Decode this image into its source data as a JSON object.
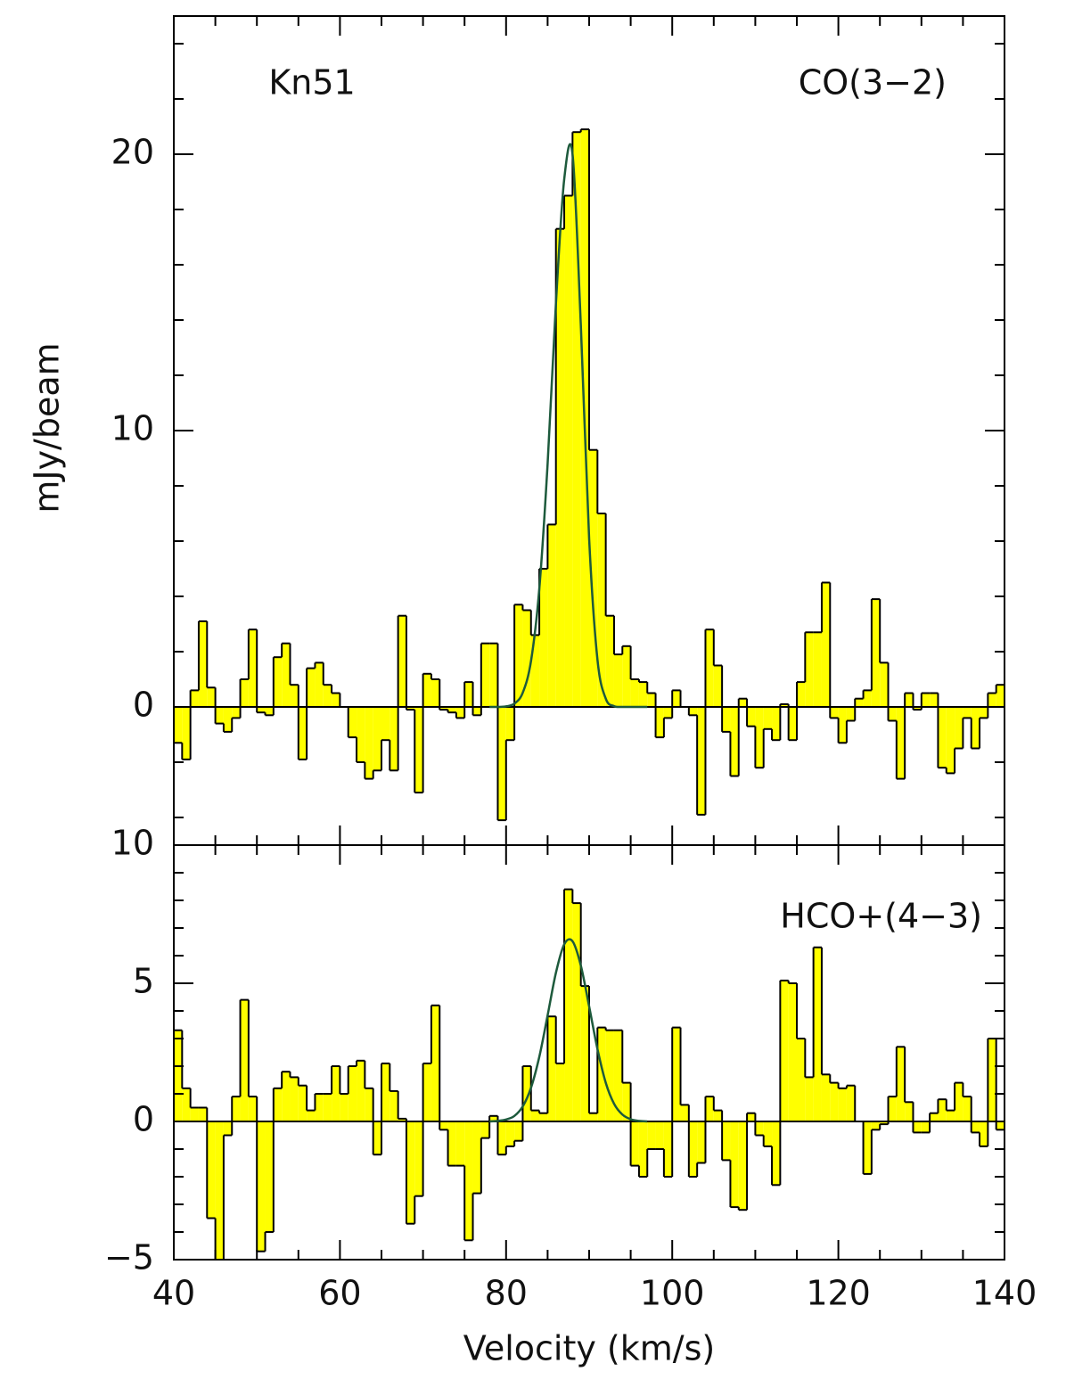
{
  "chart_data": [
    {
      "type": "histogram",
      "ylabel": "mJy/beam",
      "annotations": [
        "Kn51",
        "CO(3−2)"
      ],
      "bins": [
        40,
        41,
        42,
        43,
        44,
        45,
        46,
        47,
        48,
        49,
        50,
        51,
        52,
        53,
        54,
        55,
        56,
        57,
        58,
        59,
        60,
        61,
        62,
        63,
        64,
        65,
        66,
        67,
        68,
        69,
        70,
        71,
        72,
        73,
        74,
        75,
        76,
        77,
        78,
        79,
        80,
        81,
        82,
        83,
        84,
        85,
        86,
        87,
        88,
        89,
        90,
        91,
        92,
        93,
        94,
        95,
        96,
        97,
        98,
        99,
        100,
        101,
        102,
        103,
        104,
        105,
        106,
        107,
        108,
        109,
        110,
        111,
        112,
        113,
        114,
        115,
        116,
        117,
        118,
        119,
        120,
        121,
        122,
        123,
        124,
        125,
        126,
        127,
        128,
        129,
        130,
        131,
        132,
        133,
        134,
        135,
        136,
        137,
        138,
        139,
        140
      ],
      "values": [
        -1.3,
        -1.9,
        0.6,
        3.1,
        0.7,
        -0.6,
        -0.9,
        -0.4,
        1.0,
        2.8,
        -0.2,
        -0.3,
        1.8,
        2.3,
        0.8,
        -1.9,
        1.4,
        1.6,
        0.8,
        0.5,
        0,
        -1.1,
        -2.0,
        -2.6,
        -2.3,
        -1.2,
        -2.3,
        3.3,
        -0.1,
        -3.1,
        1.2,
        1.0,
        -0.1,
        -0.2,
        -0.4,
        0.9,
        -0.3,
        2.3,
        2.3,
        -4.1,
        -1.2,
        3.7,
        3.5,
        2.6,
        5.0,
        6.6,
        17.3,
        18.5,
        20.8,
        20.9,
        9.3,
        7.0,
        3.3,
        1.9,
        2.2,
        1.0,
        0.9,
        0.5,
        -1.1,
        -0.4,
        0.6,
        0,
        -0.3,
        -3.9,
        2.8,
        1.5,
        -0.9,
        -2.5,
        0.3,
        -0.7,
        -2.2,
        -0.8,
        -1.2,
        0.1,
        -1.2,
        0.9,
        2.7,
        2.7,
        4.5,
        -0.4,
        -1.3,
        -0.5,
        0.3,
        0.6,
        3.9,
        1.6,
        -0.5,
        -2.6,
        0.5,
        -0.1,
        0.5,
        0.5,
        -2.2,
        -2.4,
        -1.5,
        -0.4,
        -1.5,
        -0.4,
        0.5,
        0.8
      ],
      "color": "#ffff00",
      "fit": {
        "color": "#1d5a3c",
        "x": [
          78,
          79,
          80,
          81,
          82,
          83,
          84,
          85,
          86,
          87,
          88,
          89,
          90,
          91,
          92,
          93,
          94,
          95,
          96,
          97
        ],
        "values": [
          0,
          0,
          0.02,
          0.12,
          0.51,
          1.66,
          4.28,
          8.8,
          14.6,
          19.1,
          20.0,
          13.8,
          6.08,
          1.71,
          0.3,
          0.03,
          0,
          0,
          0,
          0
        ]
      },
      "xlim": [
        40,
        140
      ],
      "xminorticks": [
        45,
        50,
        55,
        65,
        70,
        75,
        85,
        90,
        95,
        105,
        110,
        115,
        125,
        130,
        135
      ],
      "ylim": [
        -5,
        25
      ],
      "yticks": [
        0,
        10,
        20
      ],
      "yminorticks": [
        -4,
        -2,
        2,
        4,
        6,
        8,
        12,
        14,
        16,
        18,
        22,
        24
      ]
    },
    {
      "type": "histogram",
      "xlabel": "Velocity (km/s)",
      "annotations": [
        "HCO+(4−3)"
      ],
      "bins": [
        40,
        41,
        42,
        43,
        44,
        45,
        46,
        47,
        48,
        49,
        50,
        51,
        52,
        53,
        54,
        55,
        56,
        57,
        58,
        59,
        60,
        61,
        62,
        63,
        64,
        65,
        66,
        67,
        68,
        69,
        70,
        71,
        72,
        73,
        74,
        75,
        76,
        77,
        78,
        79,
        80,
        81,
        82,
        83,
        84,
        85,
        86,
        87,
        88,
        89,
        90,
        91,
        92,
        93,
        94,
        95,
        96,
        97,
        98,
        99,
        100,
        101,
        102,
        103,
        104,
        105,
        106,
        107,
        108,
        109,
        110,
        111,
        112,
        113,
        114,
        115,
        116,
        117,
        118,
        119,
        120,
        121,
        122,
        123,
        124,
        125,
        126,
        127,
        128,
        129,
        130,
        131,
        132,
        133,
        134,
        135,
        136,
        137,
        138,
        139,
        140
      ],
      "values": [
        3.3,
        1.2,
        0.5,
        0.5,
        -3.5,
        -5.5,
        -0.5,
        0.9,
        4.4,
        0.9,
        -4.7,
        -4.0,
        1.2,
        1.8,
        1.6,
        1.3,
        0.4,
        1.0,
        1.0,
        2.0,
        1.0,
        2.0,
        2.2,
        1.2,
        -1.2,
        2.1,
        1.1,
        0.1,
        -3.7,
        -2.7,
        2.1,
        4.2,
        -0.3,
        -1.6,
        -1.6,
        -4.3,
        -2.6,
        -0.6,
        0.2,
        -1.2,
        -0.9,
        -0.7,
        2.0,
        0.4,
        0.3,
        3.8,
        2.1,
        8.4,
        7.9,
        4.9,
        0.3,
        3.4,
        3.3,
        3.3,
        1.4,
        -1.6,
        -2.0,
        -1.0,
        -1.0,
        -2.0,
        3.4,
        0.6,
        -2.0,
        -1.5,
        0.9,
        0.4,
        -1.4,
        -3.1,
        -3.2,
        0.3,
        -0.5,
        -0.9,
        -2.3,
        5.1,
        5.0,
        3.0,
        1.6,
        6.3,
        1.7,
        1.4,
        1.2,
        1.3,
        0,
        -1.9,
        -0.3,
        -0.1,
        0.9,
        2.7,
        0.7,
        -0.4,
        -0.4,
        0.3,
        0.8,
        0.4,
        1.4,
        0.9,
        -0.4,
        -0.9,
        3.0,
        -0.3
      ],
      "color": "#ffff00",
      "fit": {
        "color": "#1d5a3c",
        "x": [
          78,
          79,
          80,
          81,
          82,
          83,
          84,
          85,
          86,
          87,
          88,
          89,
          90,
          91,
          92,
          93,
          94,
          95,
          96,
          97
        ],
        "values": [
          0,
          0.02,
          0.07,
          0.2,
          0.54,
          1.22,
          2.34,
          3.84,
          5.38,
          6.41,
          6.52,
          5.64,
          4.16,
          2.62,
          1.4,
          0.64,
          0.25,
          0.08,
          0.02,
          0
        ]
      },
      "xlim": [
        40,
        140
      ],
      "xticks": [
        40,
        60,
        80,
        100,
        120,
        140
      ],
      "xminorticks": [
        45,
        50,
        55,
        65,
        70,
        75,
        85,
        90,
        95,
        105,
        110,
        115,
        125,
        130,
        135
      ],
      "ylim": [
        -5,
        10
      ],
      "yticks": [
        {
          "value": -5,
          "label": "−5"
        },
        0,
        5,
        10
      ],
      "yminorticks": [
        -4,
        -3,
        -2,
        -1,
        1,
        2,
        3,
        4,
        6,
        7,
        8,
        9
      ]
    }
  ]
}
